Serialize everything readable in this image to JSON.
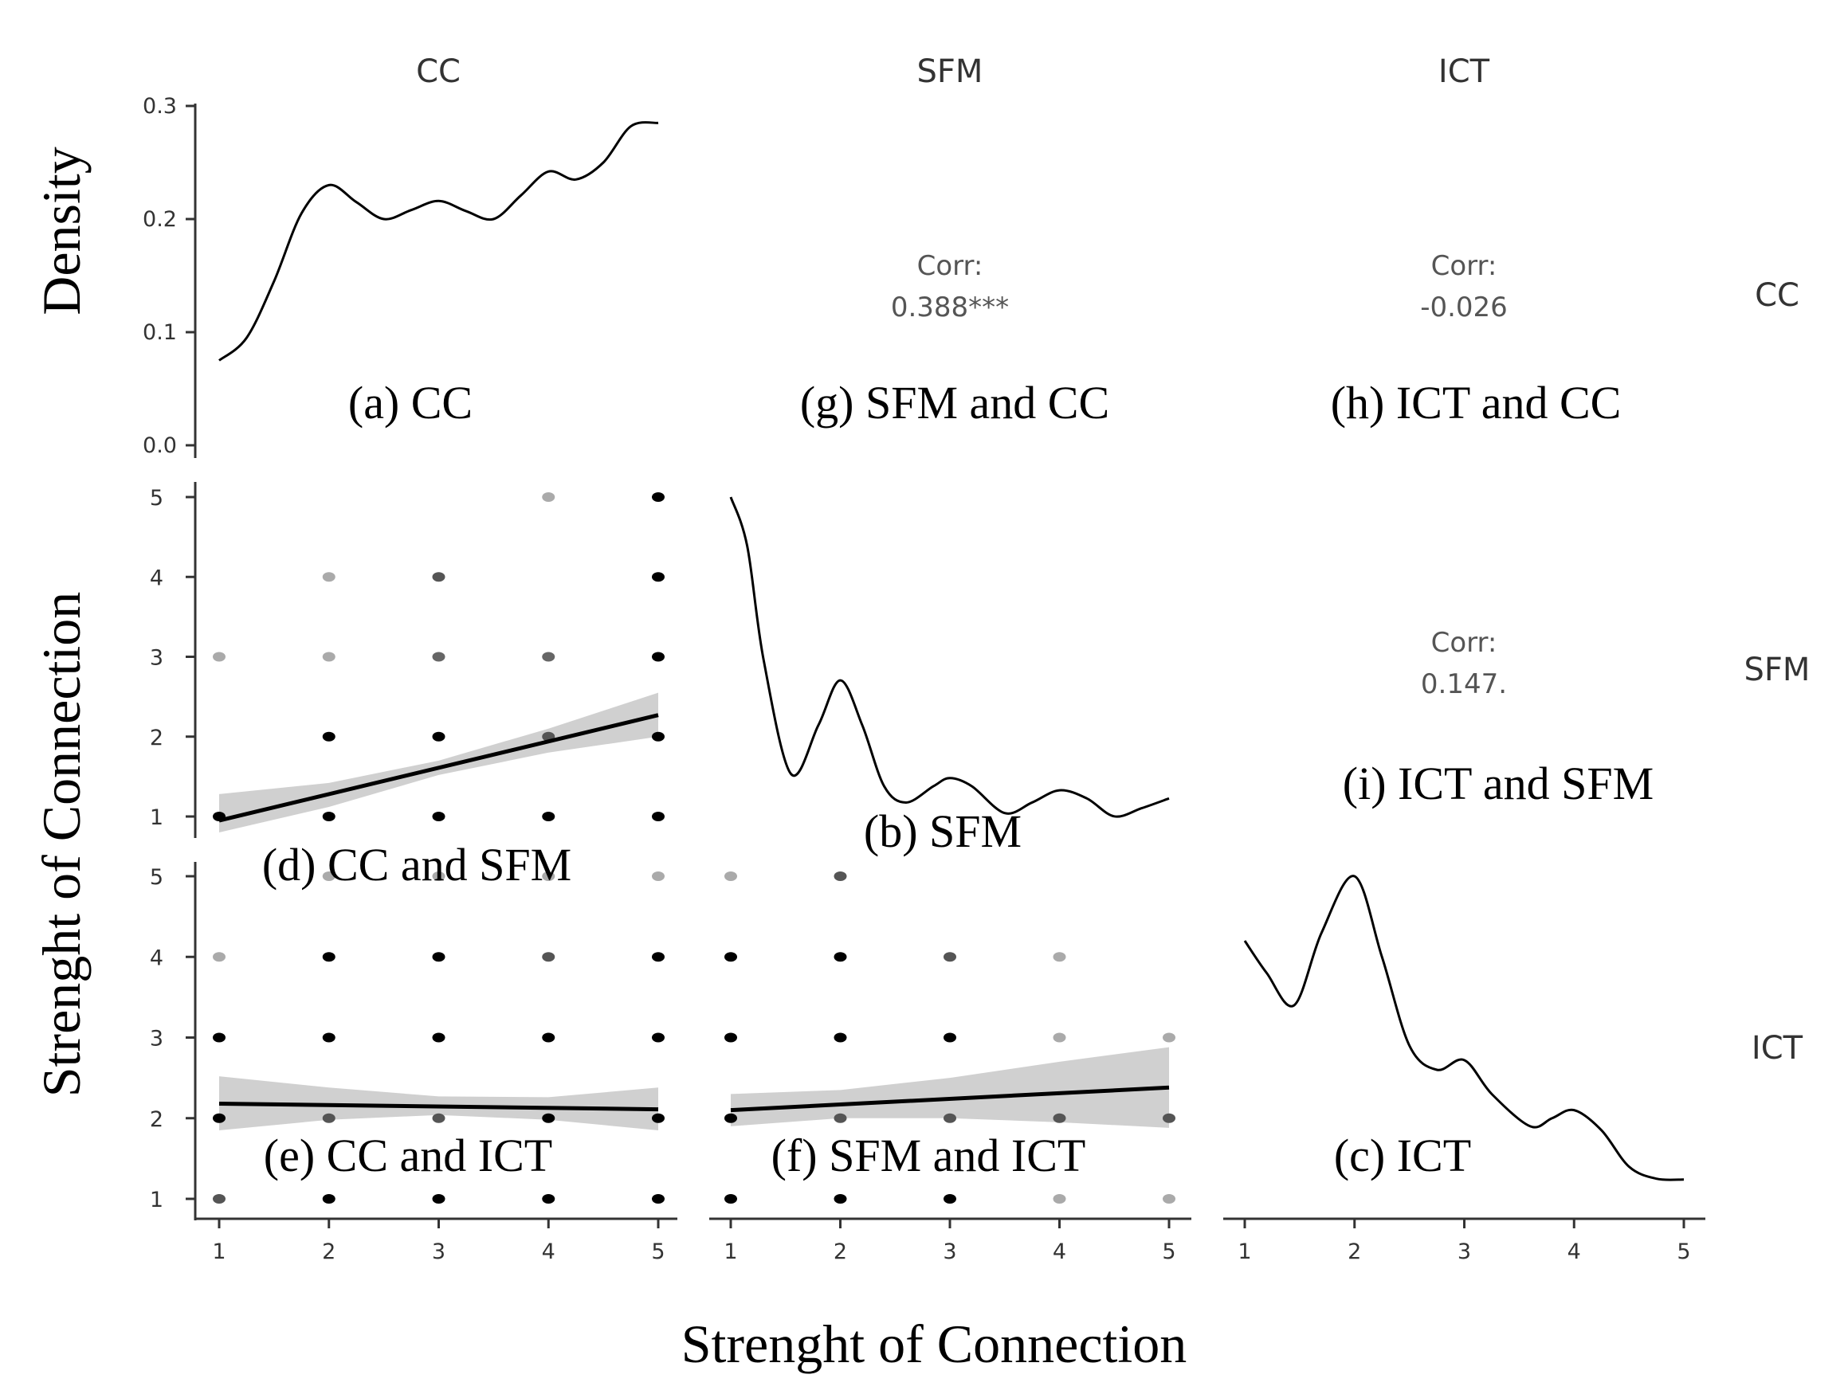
{
  "chart_data": {
    "type": "scatter",
    "title": "",
    "xlabel": "Strenght of Connection",
    "ylabel_top": "Density",
    "ylabel_bottom": "Strenght of Connection",
    "variables": [
      "CC",
      "SFM",
      "ICT"
    ],
    "row_labels": [
      "CC",
      "SFM",
      "ICT"
    ],
    "col_labels": [
      "CC",
      "SFM",
      "ICT"
    ],
    "axis_range": [
      1,
      5
    ],
    "ticks": [
      "1",
      "2",
      "3",
      "4",
      "5"
    ],
    "density_axis": {
      "ylim": [
        0,
        0.3
      ],
      "ticks": [
        "0.0",
        "0.1",
        "0.2",
        "0.3"
      ]
    },
    "densities": {
      "CC": {
        "x": [
          1,
          1.25,
          1.5,
          1.75,
          2,
          2.25,
          2.5,
          2.75,
          3,
          3.25,
          3.5,
          3.75,
          4,
          4.25,
          4.5,
          4.75,
          5
        ],
        "y": [
          0.075,
          0.095,
          0.145,
          0.205,
          0.23,
          0.215,
          0.2,
          0.208,
          0.216,
          0.207,
          0.2,
          0.221,
          0.242,
          0.235,
          0.25,
          0.282,
          0.285
        ]
      },
      "SFM": {
        "x": [
          1,
          1.15,
          1.3,
          1.55,
          1.8,
          2.0,
          2.2,
          2.4,
          2.6,
          2.85,
          3.0,
          3.2,
          3.5,
          3.75,
          4.0,
          4.25,
          4.5,
          4.75,
          5
        ],
        "y": [
          5.0,
          4.4,
          3.0,
          1.6,
          2.2,
          2.75,
          2.2,
          1.45,
          1.25,
          1.45,
          1.55,
          1.45,
          1.12,
          1.25,
          1.4,
          1.3,
          1.08,
          1.18,
          1.3
        ]
      },
      "ICT": {
        "x": [
          1,
          1.2,
          1.45,
          1.7,
          2.0,
          2.25,
          2.5,
          2.75,
          3.0,
          3.25,
          3.6,
          3.8,
          4.0,
          4.25,
          4.5,
          4.75,
          5
        ],
        "y": [
          4.2,
          3.8,
          3.4,
          4.3,
          5.0,
          4.0,
          2.9,
          2.6,
          2.72,
          2.3,
          1.9,
          2.0,
          2.1,
          1.85,
          1.4,
          1.25,
          1.24
        ]
      }
    },
    "scatter_panels": [
      {
        "id": "d",
        "x": "CC",
        "y": "SFM",
        "points": [
          [
            1,
            1,
            "#000000"
          ],
          [
            1,
            3,
            "#aaaaaa"
          ],
          [
            2,
            1,
            "#000000"
          ],
          [
            2,
            2,
            "#000000"
          ],
          [
            2,
            3,
            "#aaaaaa"
          ],
          [
            2,
            4,
            "#aaaaaa"
          ],
          [
            3,
            1,
            "#000000"
          ],
          [
            3,
            2,
            "#000000"
          ],
          [
            3,
            3,
            "#666666"
          ],
          [
            3,
            4,
            "#555555"
          ],
          [
            4,
            1,
            "#000000"
          ],
          [
            4,
            2,
            "#555555"
          ],
          [
            4,
            3,
            "#666666"
          ],
          [
            4,
            5,
            "#aaaaaa"
          ],
          [
            5,
            1,
            "#000000"
          ],
          [
            5,
            2,
            "#000000"
          ],
          [
            5,
            3,
            "#000000"
          ],
          [
            5,
            4,
            "#000000"
          ],
          [
            5,
            5,
            "#000000"
          ]
        ],
        "fit": {
          "x": [
            1,
            5
          ],
          "y": [
            0.95,
            2.27
          ]
        },
        "band_upper": [
          [
            1,
            1.28
          ],
          [
            2,
            1.42
          ],
          [
            3,
            1.7
          ],
          [
            4,
            2.1
          ],
          [
            5,
            2.55
          ]
        ],
        "band_lower": [
          [
            1,
            0.8
          ],
          [
            2,
            1.12
          ],
          [
            3,
            1.52
          ],
          [
            4,
            1.8
          ],
          [
            5,
            2.0
          ]
        ]
      },
      {
        "id": "e",
        "x": "CC",
        "y": "ICT",
        "points": [
          [
            1,
            1,
            "#555555"
          ],
          [
            1,
            2,
            "#000000"
          ],
          [
            1,
            3,
            "#000000"
          ],
          [
            1,
            4,
            "#aaaaaa"
          ],
          [
            2,
            1,
            "#000000"
          ],
          [
            2,
            2,
            "#555555"
          ],
          [
            2,
            3,
            "#000000"
          ],
          [
            2,
            4,
            "#000000"
          ],
          [
            2,
            5,
            "#aaaaaa"
          ],
          [
            3,
            1,
            "#000000"
          ],
          [
            3,
            2,
            "#555555"
          ],
          [
            3,
            3,
            "#000000"
          ],
          [
            3,
            4,
            "#000000"
          ],
          [
            3,
            5,
            "#aaaaaa"
          ],
          [
            4,
            1,
            "#000000"
          ],
          [
            4,
            2,
            "#000000"
          ],
          [
            4,
            3,
            "#000000"
          ],
          [
            4,
            4,
            "#555555"
          ],
          [
            4,
            5,
            "#aaaaaa"
          ],
          [
            5,
            1,
            "#000000"
          ],
          [
            5,
            2,
            "#000000"
          ],
          [
            5,
            3,
            "#000000"
          ],
          [
            5,
            4,
            "#000000"
          ],
          [
            5,
            5,
            "#aaaaaa"
          ]
        ],
        "fit": {
          "x": [
            1,
            5
          ],
          "y": [
            2.18,
            2.11
          ]
        },
        "band_upper": [
          [
            1,
            2.52
          ],
          [
            2,
            2.38
          ],
          [
            3,
            2.27
          ],
          [
            4,
            2.26
          ],
          [
            5,
            2.38
          ]
        ],
        "band_lower": [
          [
            1,
            1.85
          ],
          [
            2,
            1.98
          ],
          [
            3,
            2.04
          ],
          [
            4,
            1.98
          ],
          [
            5,
            1.85
          ]
        ]
      },
      {
        "id": "f",
        "x": "SFM",
        "y": "ICT",
        "points": [
          [
            1,
            1,
            "#000000"
          ],
          [
            1,
            2,
            "#000000"
          ],
          [
            1,
            3,
            "#000000"
          ],
          [
            1,
            4,
            "#000000"
          ],
          [
            1,
            5,
            "#aaaaaa"
          ],
          [
            2,
            1,
            "#000000"
          ],
          [
            2,
            2,
            "#555555"
          ],
          [
            2,
            3,
            "#000000"
          ],
          [
            2,
            4,
            "#000000"
          ],
          [
            2,
            5,
            "#555555"
          ],
          [
            3,
            1,
            "#000000"
          ],
          [
            3,
            2,
            "#555555"
          ],
          [
            3,
            3,
            "#000000"
          ],
          [
            3,
            4,
            "#555555"
          ],
          [
            4,
            1,
            "#aaaaaa"
          ],
          [
            4,
            2,
            "#555555"
          ],
          [
            4,
            3,
            "#aaaaaa"
          ],
          [
            4,
            4,
            "#aaaaaa"
          ],
          [
            5,
            1,
            "#aaaaaa"
          ],
          [
            5,
            2,
            "#555555"
          ],
          [
            5,
            3,
            "#aaaaaa"
          ]
        ],
        "fit": {
          "x": [
            1,
            5
          ],
          "y": [
            2.1,
            2.38
          ]
        },
        "band_upper": [
          [
            1,
            2.3
          ],
          [
            2,
            2.35
          ],
          [
            3,
            2.5
          ],
          [
            4,
            2.7
          ],
          [
            5,
            2.88
          ]
        ],
        "band_lower": [
          [
            1,
            1.9
          ],
          [
            2,
            2.0
          ],
          [
            3,
            2.0
          ],
          [
            4,
            1.95
          ],
          [
            5,
            1.88
          ]
        ]
      }
    ],
    "correlations": [
      {
        "id": "g",
        "label": "Corr:",
        "value": "0.388***"
      },
      {
        "id": "h",
        "label": "Corr:",
        "value": "-0.026"
      },
      {
        "id": "i",
        "label": "Corr:",
        "value": "0.147."
      }
    ],
    "captions": {
      "a": "(a) CC",
      "b": "(b) SFM",
      "c": "(c) ICT",
      "d": "(d) CC and SFM",
      "e": "(e) CC and ICT",
      "f": "(f) SFM and ICT",
      "g": "(g) SFM and CC",
      "h": "(h) ICT and CC",
      "i": "(i) ICT and SFM"
    }
  }
}
